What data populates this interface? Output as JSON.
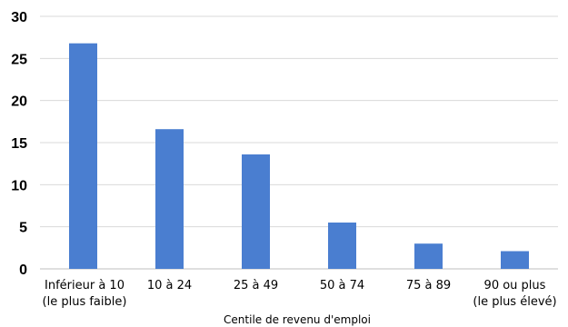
{
  "chart_data": {
    "type": "bar",
    "categories": [
      [
        "Inférieur à 10",
        "(le plus faible)"
      ],
      [
        "10 à 24"
      ],
      [
        "25 à 49"
      ],
      [
        "50 à 74"
      ],
      [
        "75 à 89"
      ],
      [
        "90 ou plus",
        "(le plus élevé)"
      ]
    ],
    "values": [
      26.8,
      16.6,
      13.6,
      5.5,
      3.0,
      2.1
    ],
    "title": "",
    "xlabel": "Centile de revenu d'emploi",
    "ylabel": "",
    "ylim": [
      0,
      30
    ],
    "yticks": [
      "0",
      "5",
      "10",
      "15",
      "20",
      "25",
      "30"
    ],
    "grid": true,
    "legend": "none",
    "colors": {
      "bar": "#4a7ed0",
      "grid": "#d9d9d9",
      "axis": "#bfbfbf"
    }
  }
}
